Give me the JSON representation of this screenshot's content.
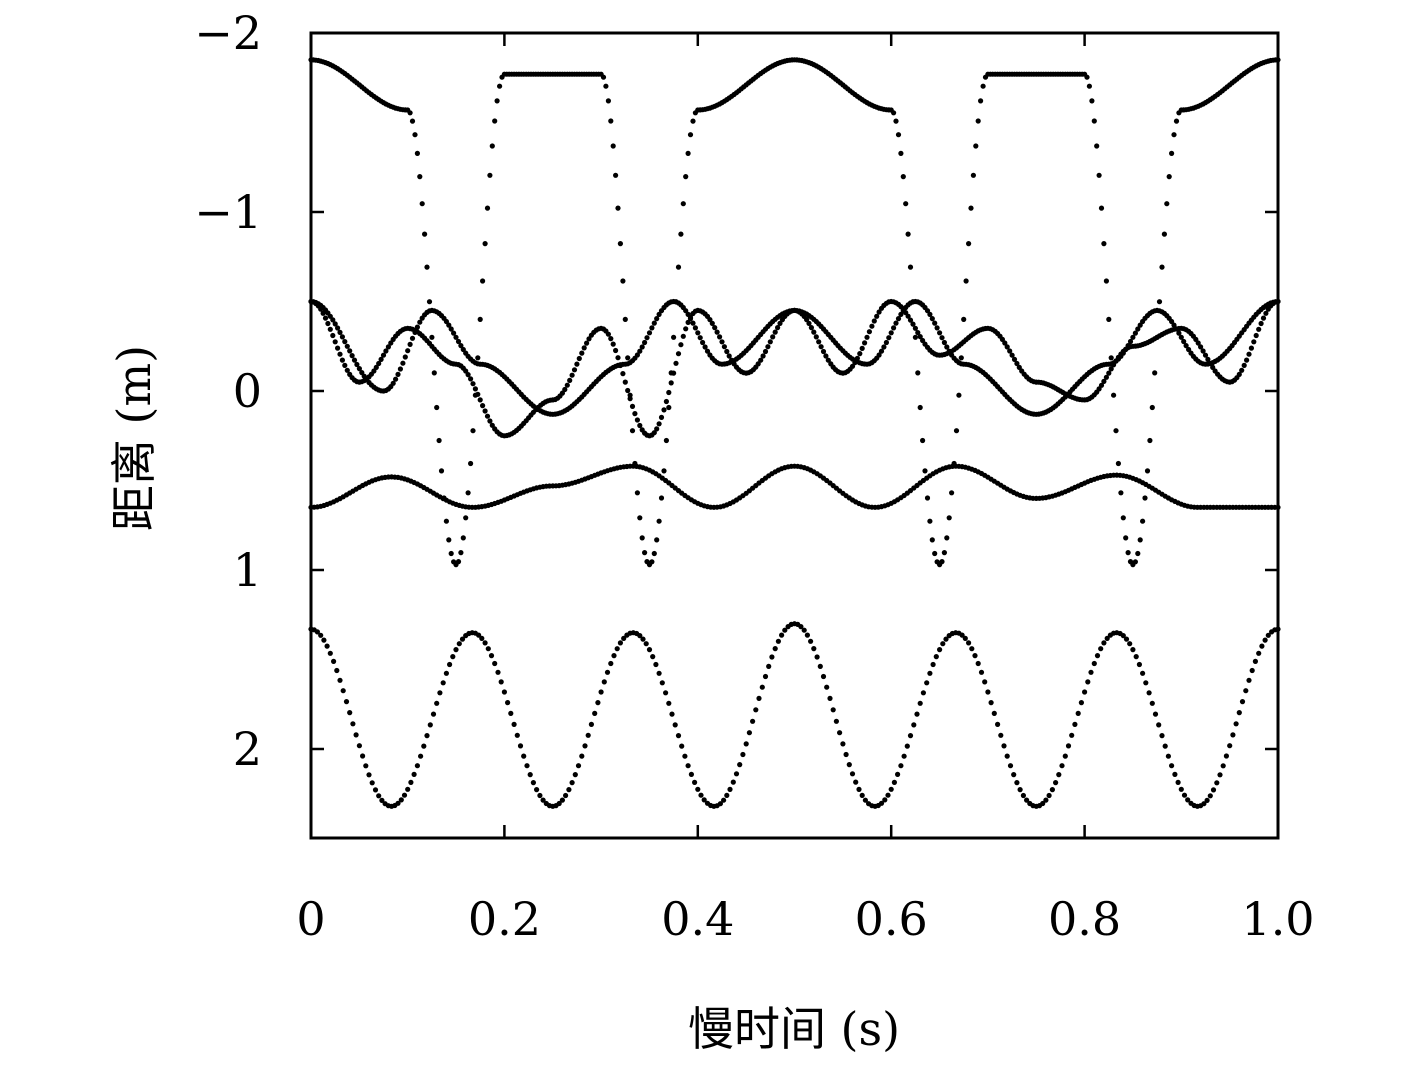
{
  "chart_data": {
    "type": "scatter",
    "xlabel": "慢时间 (s)",
    "ylabel": "距离 (m)",
    "xlim": [
      0,
      1.0
    ],
    "ylim": [
      -2,
      2.5
    ],
    "y_axis_inverted": true,
    "grid": false,
    "legend": "none",
    "x_ticks": [
      0,
      0.2,
      0.4,
      0.6,
      0.8,
      1.0
    ],
    "x_tick_labels": [
      "0",
      "0.2",
      "0.4",
      "0.6",
      "0.8",
      "1.0"
    ],
    "y_ticks": [
      -2,
      -1,
      0,
      1,
      2
    ],
    "y_tick_labels": [
      "−2",
      "−1",
      "0",
      "1",
      "2"
    ],
    "marker_color": "#000000",
    "series": [
      {
        "samples": 400,
        "x": [
          0,
          0.1,
          0.15,
          0.2,
          0.3,
          0.35,
          0.4,
          0.5,
          0.6,
          0.65,
          0.7,
          0.8,
          0.85,
          0.9,
          1.0
        ],
        "y": [
          -1.85,
          -1.57,
          0.97,
          -1.77,
          -1.77,
          0.97,
          -1.57,
          -1.85,
          -1.57,
          0.97,
          -1.77,
          -1.77,
          0.97,
          -1.57,
          -1.85
        ]
      },
      {
        "samples": 400,
        "x": [
          0,
          0.075,
          0.125,
          0.175,
          0.25,
          0.325,
          0.375,
          0.425,
          0.5,
          0.575,
          0.625,
          0.675,
          0.75,
          0.825,
          0.875,
          0.925,
          1.0
        ],
        "y": [
          -0.5,
          0.0,
          -0.45,
          -0.15,
          0.13,
          -0.15,
          -0.5,
          -0.15,
          -0.45,
          -0.15,
          -0.5,
          -0.15,
          0.13,
          -0.15,
          -0.45,
          -0.15,
          -0.5
        ]
      },
      {
        "samples": 400,
        "x": [
          0,
          0.05,
          0.1,
          0.15,
          0.2,
          0.25,
          0.3,
          0.35,
          0.4,
          0.45,
          0.5,
          0.55,
          0.6,
          0.65,
          0.7,
          0.75,
          0.8,
          0.85,
          0.9,
          0.95,
          1.0
        ],
        "y": [
          -0.5,
          -0.05,
          -0.35,
          -0.15,
          0.25,
          0.05,
          -0.35,
          0.25,
          -0.45,
          -0.1,
          -0.45,
          -0.1,
          -0.5,
          -0.2,
          -0.35,
          -0.05,
          0.05,
          -0.25,
          -0.35,
          -0.05,
          -0.5
        ]
      },
      {
        "samples": 300,
        "x": [
          0,
          0.083,
          0.167,
          0.25,
          0.333,
          0.417,
          0.5,
          0.583,
          0.667,
          0.75,
          0.833,
          0.917,
          1.0
        ],
        "y": [
          0.65,
          0.48,
          0.65,
          0.53,
          0.42,
          0.65,
          0.42,
          0.65,
          0.42,
          0.6,
          0.47,
          0.65,
          0.65
        ]
      },
      {
        "samples": 300,
        "x": [
          0,
          0.083,
          0.167,
          0.25,
          0.333,
          0.417,
          0.5,
          0.583,
          0.667,
          0.75,
          0.833,
          0.917,
          1.0
        ],
        "y": [
          1.33,
          2.32,
          1.35,
          2.32,
          1.35,
          2.32,
          1.3,
          2.32,
          1.35,
          2.32,
          1.35,
          2.32,
          1.33
        ]
      }
    ]
  }
}
